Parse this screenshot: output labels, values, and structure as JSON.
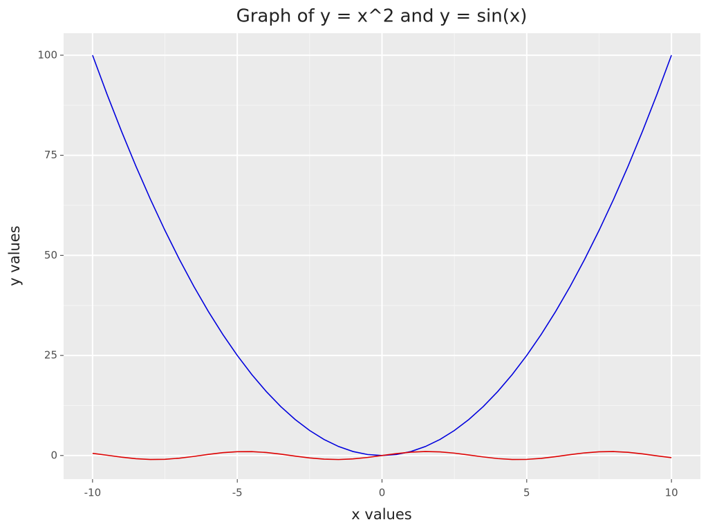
{
  "chart_data": {
    "type": "line",
    "title": "Graph of y = x^2 and y = sin(x)",
    "x_label": "x values",
    "y_label": "y values",
    "x": [
      -10,
      -9.5,
      -9,
      -8.5,
      -8,
      -7.5,
      -7,
      -6.5,
      -6,
      -5.5,
      -5,
      -4.5,
      -4,
      -3.5,
      -3,
      -2.5,
      -2,
      -1.5,
      -1,
      -0.5,
      0,
      0.5,
      1,
      1.5,
      2,
      2.5,
      3,
      3.5,
      4,
      4.5,
      5,
      5.5,
      6,
      6.5,
      7,
      7.5,
      8,
      8.5,
      9,
      9.5,
      10
    ],
    "series": [
      {
        "color": "#0000dd",
        "values": [
          100,
          90.25,
          81,
          72.25,
          64,
          56.25,
          49,
          42.25,
          36,
          30.25,
          25,
          20.25,
          16,
          12.25,
          9,
          6.25,
          4,
          2.25,
          1,
          0.25,
          0,
          0.25,
          1,
          2.25,
          4,
          6.25,
          9,
          12.25,
          16,
          20.25,
          25,
          30.25,
          36,
          42.25,
          49,
          56.25,
          64,
          72.25,
          81,
          90.25,
          100
        ]
      },
      {
        "color": "#dd0000",
        "values": [
          0.54,
          0.08,
          -0.41,
          -0.8,
          -0.99,
          -0.94,
          -0.66,
          -0.22,
          0.28,
          0.71,
          0.96,
          0.98,
          0.76,
          0.35,
          -0.14,
          -0.6,
          -0.91,
          -1,
          -0.84,
          -0.48,
          0,
          0.48,
          0.84,
          1,
          0.91,
          0.6,
          0.14,
          -0.35,
          -0.76,
          -0.98,
          -0.96,
          -0.71,
          -0.28,
          0.22,
          0.66,
          0.94,
          0.99,
          0.8,
          0.41,
          -0.08,
          -0.54
        ]
      }
    ],
    "xlim": [
      -11,
      11
    ],
    "ylim": [
      -5.9,
      105.5
    ],
    "xticks": [
      -10,
      -5,
      0,
      5,
      10
    ],
    "yticks": [
      0,
      25,
      50,
      75,
      100
    ],
    "grid": true
  }
}
